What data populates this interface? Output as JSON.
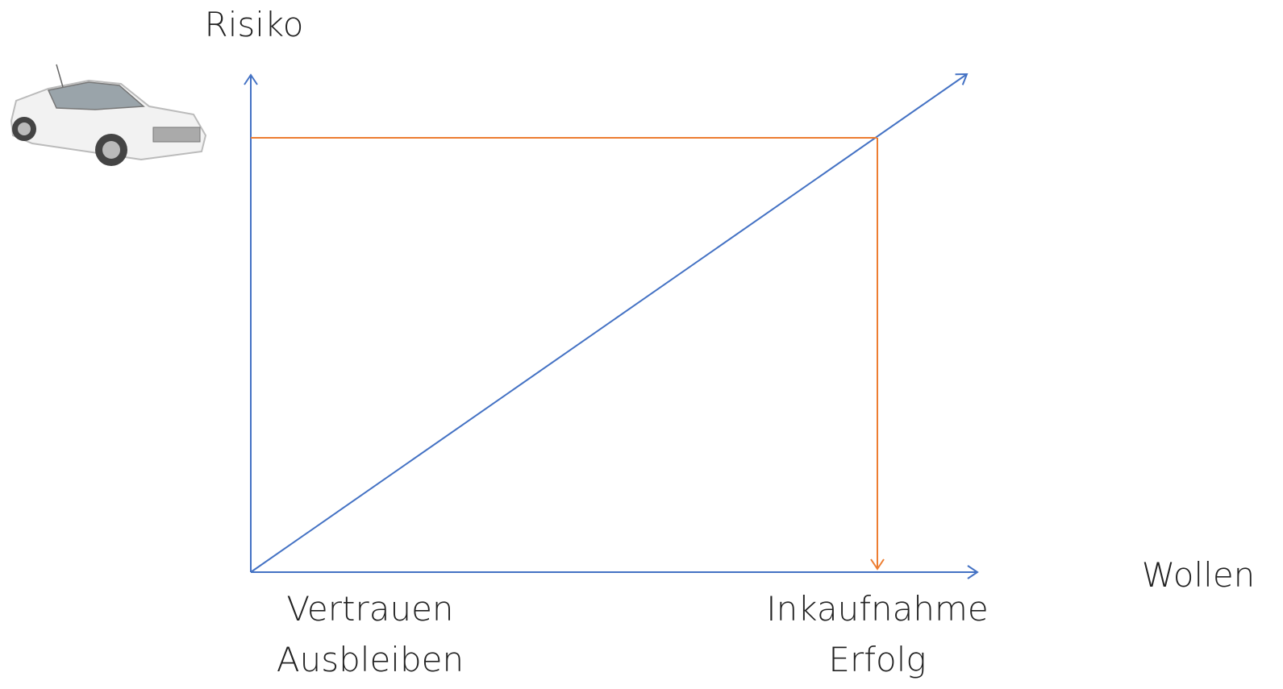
{
  "labels": {
    "y_axis": "Risiko",
    "x_axis": "Wollen",
    "left": [
      "Vertrauen",
      "Ausbleiben"
    ],
    "right": [
      "Inkaufnahme",
      "Erfolg"
    ]
  }
}
